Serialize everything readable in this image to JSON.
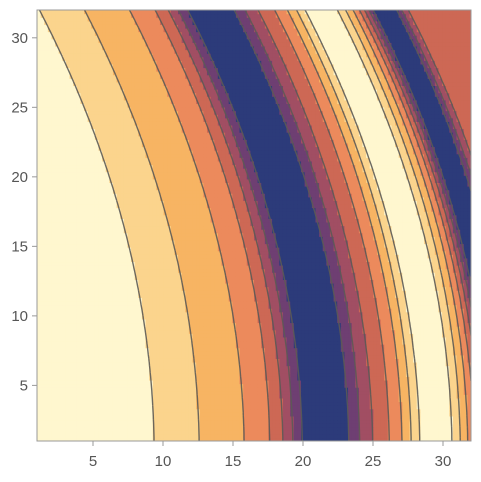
{
  "chart_data": {
    "type": "contour",
    "title": "",
    "xlabel": "",
    "ylabel": "",
    "xlim": [
      1,
      32
    ],
    "ylim": [
      1,
      32
    ],
    "x_ticks": [
      5,
      10,
      15,
      20,
      25,
      30
    ],
    "y_ticks": [
      5,
      10,
      15,
      20,
      25,
      30
    ],
    "levels": 8,
    "frame": true,
    "grid": false,
    "colormap": [
      "#2c3b7a",
      "#6e3f72",
      "#a14e63",
      "#cd6855",
      "#ec8a5c",
      "#f7b463",
      "#fbd48d",
      "#fff7cf"
    ],
    "contour_line_color": "#5c5a55",
    "function_shape": "ridges along lines x + 0.008*y*y = c; bright band at c≈4, dark band at c≈21.5, bright band at c≈29.5"
  }
}
